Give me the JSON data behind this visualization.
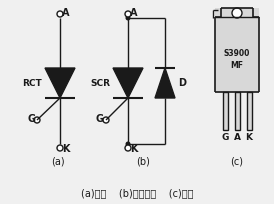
{
  "bg_color": "#f0f0f0",
  "line_color": "#1a1a1a",
  "title_text": "(a)符号    (b)等效电路    (c)外形",
  "label_a_a": "A",
  "label_a_k": "K",
  "label_a_g": "G",
  "label_a_rct": "RCT",
  "label_b_a": "A",
  "label_b_k": "K",
  "label_b_g": "G",
  "label_b_scr": "SCR",
  "label_b_d": "D",
  "label_c_g": "G",
  "label_c_a": "A",
  "label_c_k": "K",
  "label_c_s": "S3900",
  "label_c_mf": "MF",
  "sub_a": "(a)",
  "sub_b": "(b)",
  "sub_c": "(c)"
}
